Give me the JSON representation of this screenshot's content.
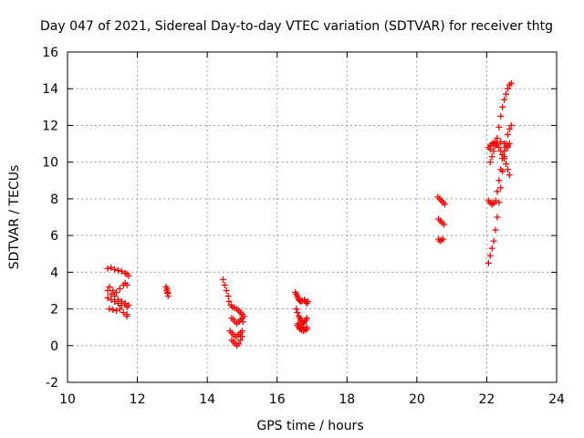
{
  "chart_data": {
    "type": "scatter",
    "title": "Day 047 of 2021, Sidereal Day-to-day VTEC variation (SDTVAR) for receiver thtg",
    "xlabel": "GPS time / hours",
    "ylabel": "SDTVAR / TECUs",
    "xlim": [
      10,
      24
    ],
    "ylim": [
      -2,
      16
    ],
    "xticks": [
      "10",
      "12",
      "14",
      "16",
      "18",
      "20",
      "22",
      "24"
    ],
    "yticks": [
      "-2",
      "0",
      "2",
      "4",
      "6",
      "8",
      "10",
      "12",
      "14",
      "16"
    ],
    "grid": true,
    "marker": "plus",
    "color": "#ff0000",
    "series": [
      {
        "name": "SDTVAR",
        "x": [
          11.15,
          11.25,
          11.35,
          11.45,
          11.55,
          11.65,
          11.7,
          11.75,
          11.2,
          11.3,
          11.4,
          11.5,
          11.6,
          11.65,
          11.7,
          11.15,
          11.25,
          11.35,
          11.45,
          11.55,
          11.65,
          11.7,
          11.75,
          11.2,
          11.3,
          11.4,
          11.5,
          11.6,
          11.7,
          11.15,
          11.25,
          11.35,
          11.45,
          11.55,
          11.65,
          11.7,
          12.82,
          12.84,
          12.86,
          12.88,
          12.85,
          12.87,
          14.45,
          14.5,
          14.55,
          14.6,
          14.62,
          14.68,
          14.72,
          14.78,
          14.85,
          14.9,
          14.95,
          15.0,
          15.05,
          14.7,
          14.75,
          14.8,
          14.85,
          14.9,
          14.95,
          15.0,
          15.02,
          14.65,
          14.7,
          14.75,
          14.8,
          14.85,
          14.9,
          14.95,
          15.0,
          14.7,
          14.75,
          14.8,
          14.85,
          14.9,
          14.95,
          15.0,
          16.52,
          16.55,
          16.58,
          16.6,
          16.62,
          16.65,
          16.68,
          16.72,
          16.78,
          16.82,
          16.85,
          16.88,
          16.55,
          16.58,
          16.62,
          16.65,
          16.68,
          16.72,
          16.75,
          16.78,
          16.82,
          16.85,
          16.58,
          16.62,
          16.65,
          16.7,
          16.75,
          16.8,
          16.85,
          16.6,
          16.65,
          16.7,
          16.75,
          16.8,
          16.85,
          20.6,
          20.65,
          20.7,
          20.75,
          20.8,
          20.62,
          20.67,
          20.72,
          20.78,
          20.62,
          20.66,
          20.7,
          20.75,
          22.05,
          22.1,
          22.15,
          22.2,
          22.25,
          22.3,
          22.35,
          22.4,
          22.45,
          22.5,
          22.55,
          22.6,
          22.65,
          22.7,
          22.1,
          22.15,
          22.2,
          22.25,
          22.3,
          22.35,
          22.4,
          22.45,
          22.5,
          22.55,
          22.6,
          22.65,
          22.7,
          22.05,
          22.1,
          22.15,
          22.2,
          22.25,
          22.3,
          22.35,
          22.4,
          22.45,
          22.5,
          22.55,
          22.6,
          22.65,
          22.1,
          22.15,
          22.2,
          22.25,
          22.3,
          22.35,
          22.4,
          22.45,
          22.5,
          22.55,
          22.6,
          22.65,
          22.1,
          22.2,
          22.3,
          22.4,
          22.5,
          22.6,
          22.05,
          22.1,
          22.15
        ],
        "y": [
          4.2,
          4.25,
          4.15,
          4.1,
          4.05,
          3.95,
          3.9,
          3.8,
          3.2,
          3.0,
          2.9,
          3.1,
          3.3,
          3.4,
          3.3,
          2.6,
          2.5,
          2.4,
          2.3,
          2.2,
          2.3,
          2.1,
          2.2,
          2.0,
          1.95,
          1.9,
          2.0,
          1.8,
          1.7,
          3.0,
          2.8,
          2.7,
          2.5,
          2.4,
          2.3,
          1.6,
          3.2,
          3.0,
          2.85,
          2.7,
          3.1,
          2.9,
          3.6,
          3.3,
          3.0,
          2.7,
          2.4,
          2.2,
          2.1,
          2.05,
          2.0,
          1.9,
          1.8,
          1.7,
          1.6,
          1.5,
          1.4,
          1.3,
          1.2,
          1.3,
          1.4,
          1.5,
          1.3,
          0.8,
          0.7,
          0.6,
          0.5,
          0.5,
          0.6,
          0.7,
          0.8,
          0.3,
          0.2,
          0.1,
          0.0,
          0.1,
          0.3,
          0.5,
          2.9,
          2.8,
          2.7,
          2.6,
          2.5,
          2.45,
          2.4,
          2.45,
          2.5,
          2.4,
          2.3,
          2.4,
          2.0,
          1.8,
          1.6,
          1.5,
          1.4,
          1.3,
          1.2,
          1.3,
          1.4,
          1.5,
          1.1,
          1.0,
          0.9,
          0.85,
          0.8,
          0.85,
          0.9,
          1.2,
          1.1,
          1.0,
          0.95,
          0.9,
          1.0,
          8.1,
          8.0,
          7.9,
          7.8,
          7.7,
          6.9,
          6.8,
          6.7,
          6.6,
          5.8,
          5.7,
          5.75,
          5.8,
          4.5,
          4.9,
          5.3,
          5.7,
          6.3,
          7.0,
          7.8,
          8.6,
          9.5,
          10.3,
          11.0,
          11.5,
          11.8,
          12.0,
          10.0,
          10.3,
          10.6,
          10.9,
          11.3,
          11.9,
          12.5,
          13.0,
          13.4,
          13.7,
          14.0,
          14.2,
          14.3,
          10.8,
          10.9,
          11.0,
          11.05,
          11.1,
          11.0,
          10.8,
          10.6,
          10.4,
          10.2,
          9.9,
          9.6,
          9.3,
          7.8,
          7.7,
          7.75,
          7.9,
          8.4,
          9.0,
          9.6,
          10.2,
          10.6,
          10.8,
          10.9,
          11.0,
          10.7,
          10.9,
          11.0,
          11.1,
          11.0,
          10.8,
          7.9,
          7.8,
          7.7
        ]
      }
    ]
  }
}
